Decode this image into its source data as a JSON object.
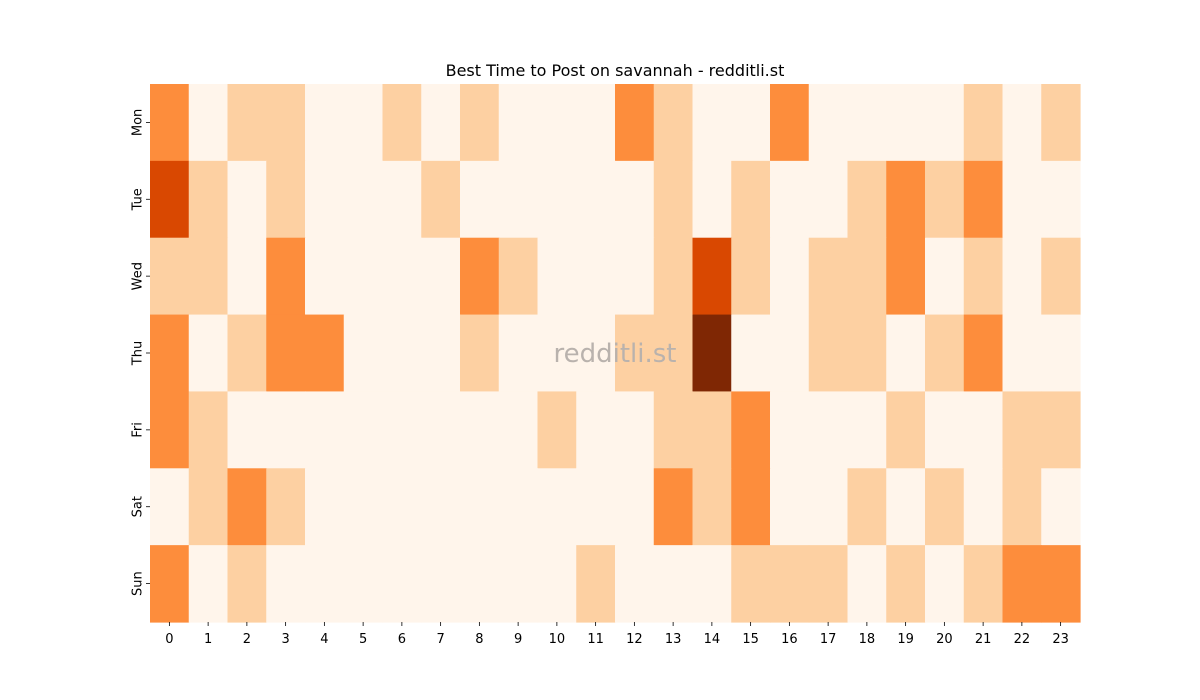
{
  "chart_data": {
    "type": "heatmap",
    "title": "Best Time to Post on savannah - redditli.st",
    "watermark": "redditli.st",
    "x_labels": [
      "0",
      "1",
      "2",
      "3",
      "4",
      "5",
      "6",
      "7",
      "8",
      "9",
      "10",
      "11",
      "12",
      "13",
      "14",
      "15",
      "16",
      "17",
      "18",
      "19",
      "20",
      "21",
      "22",
      "23"
    ],
    "y_labels": [
      "Mon",
      "Tue",
      "Wed",
      "Thu",
      "Fri",
      "Sat",
      "Sun"
    ],
    "xlabel": "",
    "ylabel": "",
    "colormap": [
      "#fff5eb",
      "#fdd0a2",
      "#fd8d3c",
      "#d94801",
      "#7f2704"
    ],
    "values": [
      [
        2,
        0,
        1,
        1,
        0,
        0,
        1,
        0,
        1,
        0,
        0,
        0,
        2,
        1,
        0,
        0,
        2,
        0,
        0,
        0,
        0,
        1,
        0,
        1
      ],
      [
        3,
        1,
        0,
        1,
        0,
        0,
        0,
        1,
        0,
        0,
        0,
        0,
        0,
        1,
        0,
        1,
        0,
        0,
        1,
        2,
        1,
        2,
        0,
        0
      ],
      [
        1,
        1,
        0,
        2,
        0,
        0,
        0,
        0,
        2,
        1,
        0,
        0,
        0,
        1,
        3,
        1,
        0,
        1,
        1,
        2,
        0,
        1,
        0,
        1
      ],
      [
        2,
        0,
        1,
        2,
        2,
        0,
        0,
        0,
        1,
        0,
        0,
        0,
        1,
        1,
        4,
        0,
        0,
        1,
        1,
        0,
        1,
        2,
        0,
        0
      ],
      [
        2,
        1,
        0,
        0,
        0,
        0,
        0,
        0,
        0,
        0,
        1,
        0,
        0,
        1,
        1,
        2,
        0,
        0,
        0,
        1,
        0,
        0,
        1,
        1
      ],
      [
        0,
        1,
        2,
        1,
        0,
        0,
        0,
        0,
        0,
        0,
        0,
        0,
        0,
        2,
        1,
        2,
        0,
        0,
        1,
        0,
        1,
        0,
        1,
        0
      ],
      [
        2,
        0,
        1,
        0,
        0,
        0,
        0,
        0,
        0,
        0,
        0,
        1,
        0,
        0,
        0,
        1,
        1,
        1,
        0,
        1,
        0,
        1,
        2,
        2
      ]
    ]
  }
}
